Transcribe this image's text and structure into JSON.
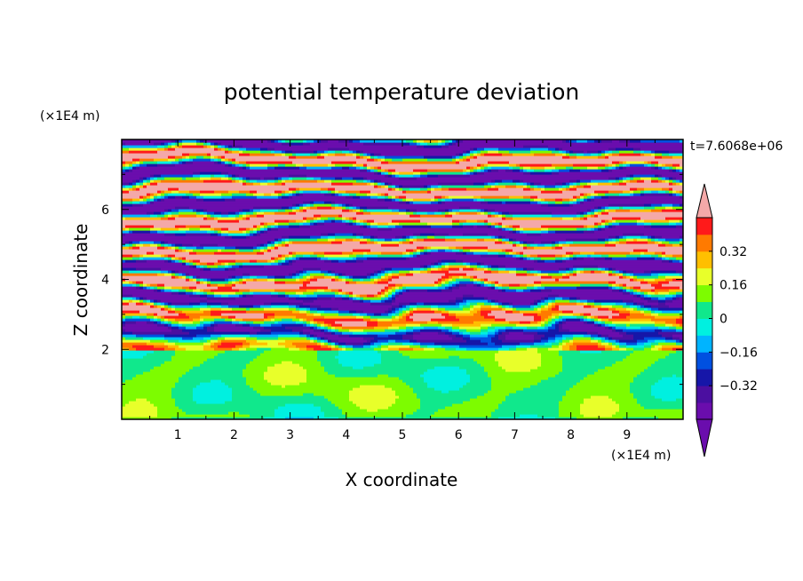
{
  "chart_data": {
    "type": "heatmap",
    "title": "potential temperature deviation",
    "xlabel": "X coordinate",
    "ylabel": "Z coordinate",
    "x_unit": "(×1E4 m)",
    "y_unit": "(×1E4 m)",
    "time_label": "t=7.6068e+06",
    "xlim": [
      0,
      10
    ],
    "ylim": [
      0,
      8
    ],
    "x_ticks": [
      "1",
      "2",
      "3",
      "4",
      "5",
      "6",
      "7",
      "8",
      "9"
    ],
    "y_ticks": [
      "2",
      "4",
      "6"
    ],
    "colorbar": {
      "levels": [
        -0.48,
        -0.4,
        -0.32,
        -0.24,
        -0.16,
        -0.08,
        0,
        0.08,
        0.16,
        0.24,
        0.32,
        0.4,
        0.48
      ],
      "colors": [
        "#6a0dad",
        "#4b0fa0",
        "#1616a8",
        "#0050e0",
        "#00b4ff",
        "#00f0e0",
        "#10e88c",
        "#7dfc00",
        "#e8ff2a",
        "#ffbf00",
        "#ff7a00",
        "#ff1a1a",
        "#f4a8a8"
      ],
      "tick_labels": [
        "0.32",
        "0.16",
        "0",
        "−0.16",
        "−0.32"
      ],
      "tick_values": [
        0.32,
        0.16,
        0,
        -0.16,
        -0.32
      ],
      "extend": "both"
    }
  }
}
